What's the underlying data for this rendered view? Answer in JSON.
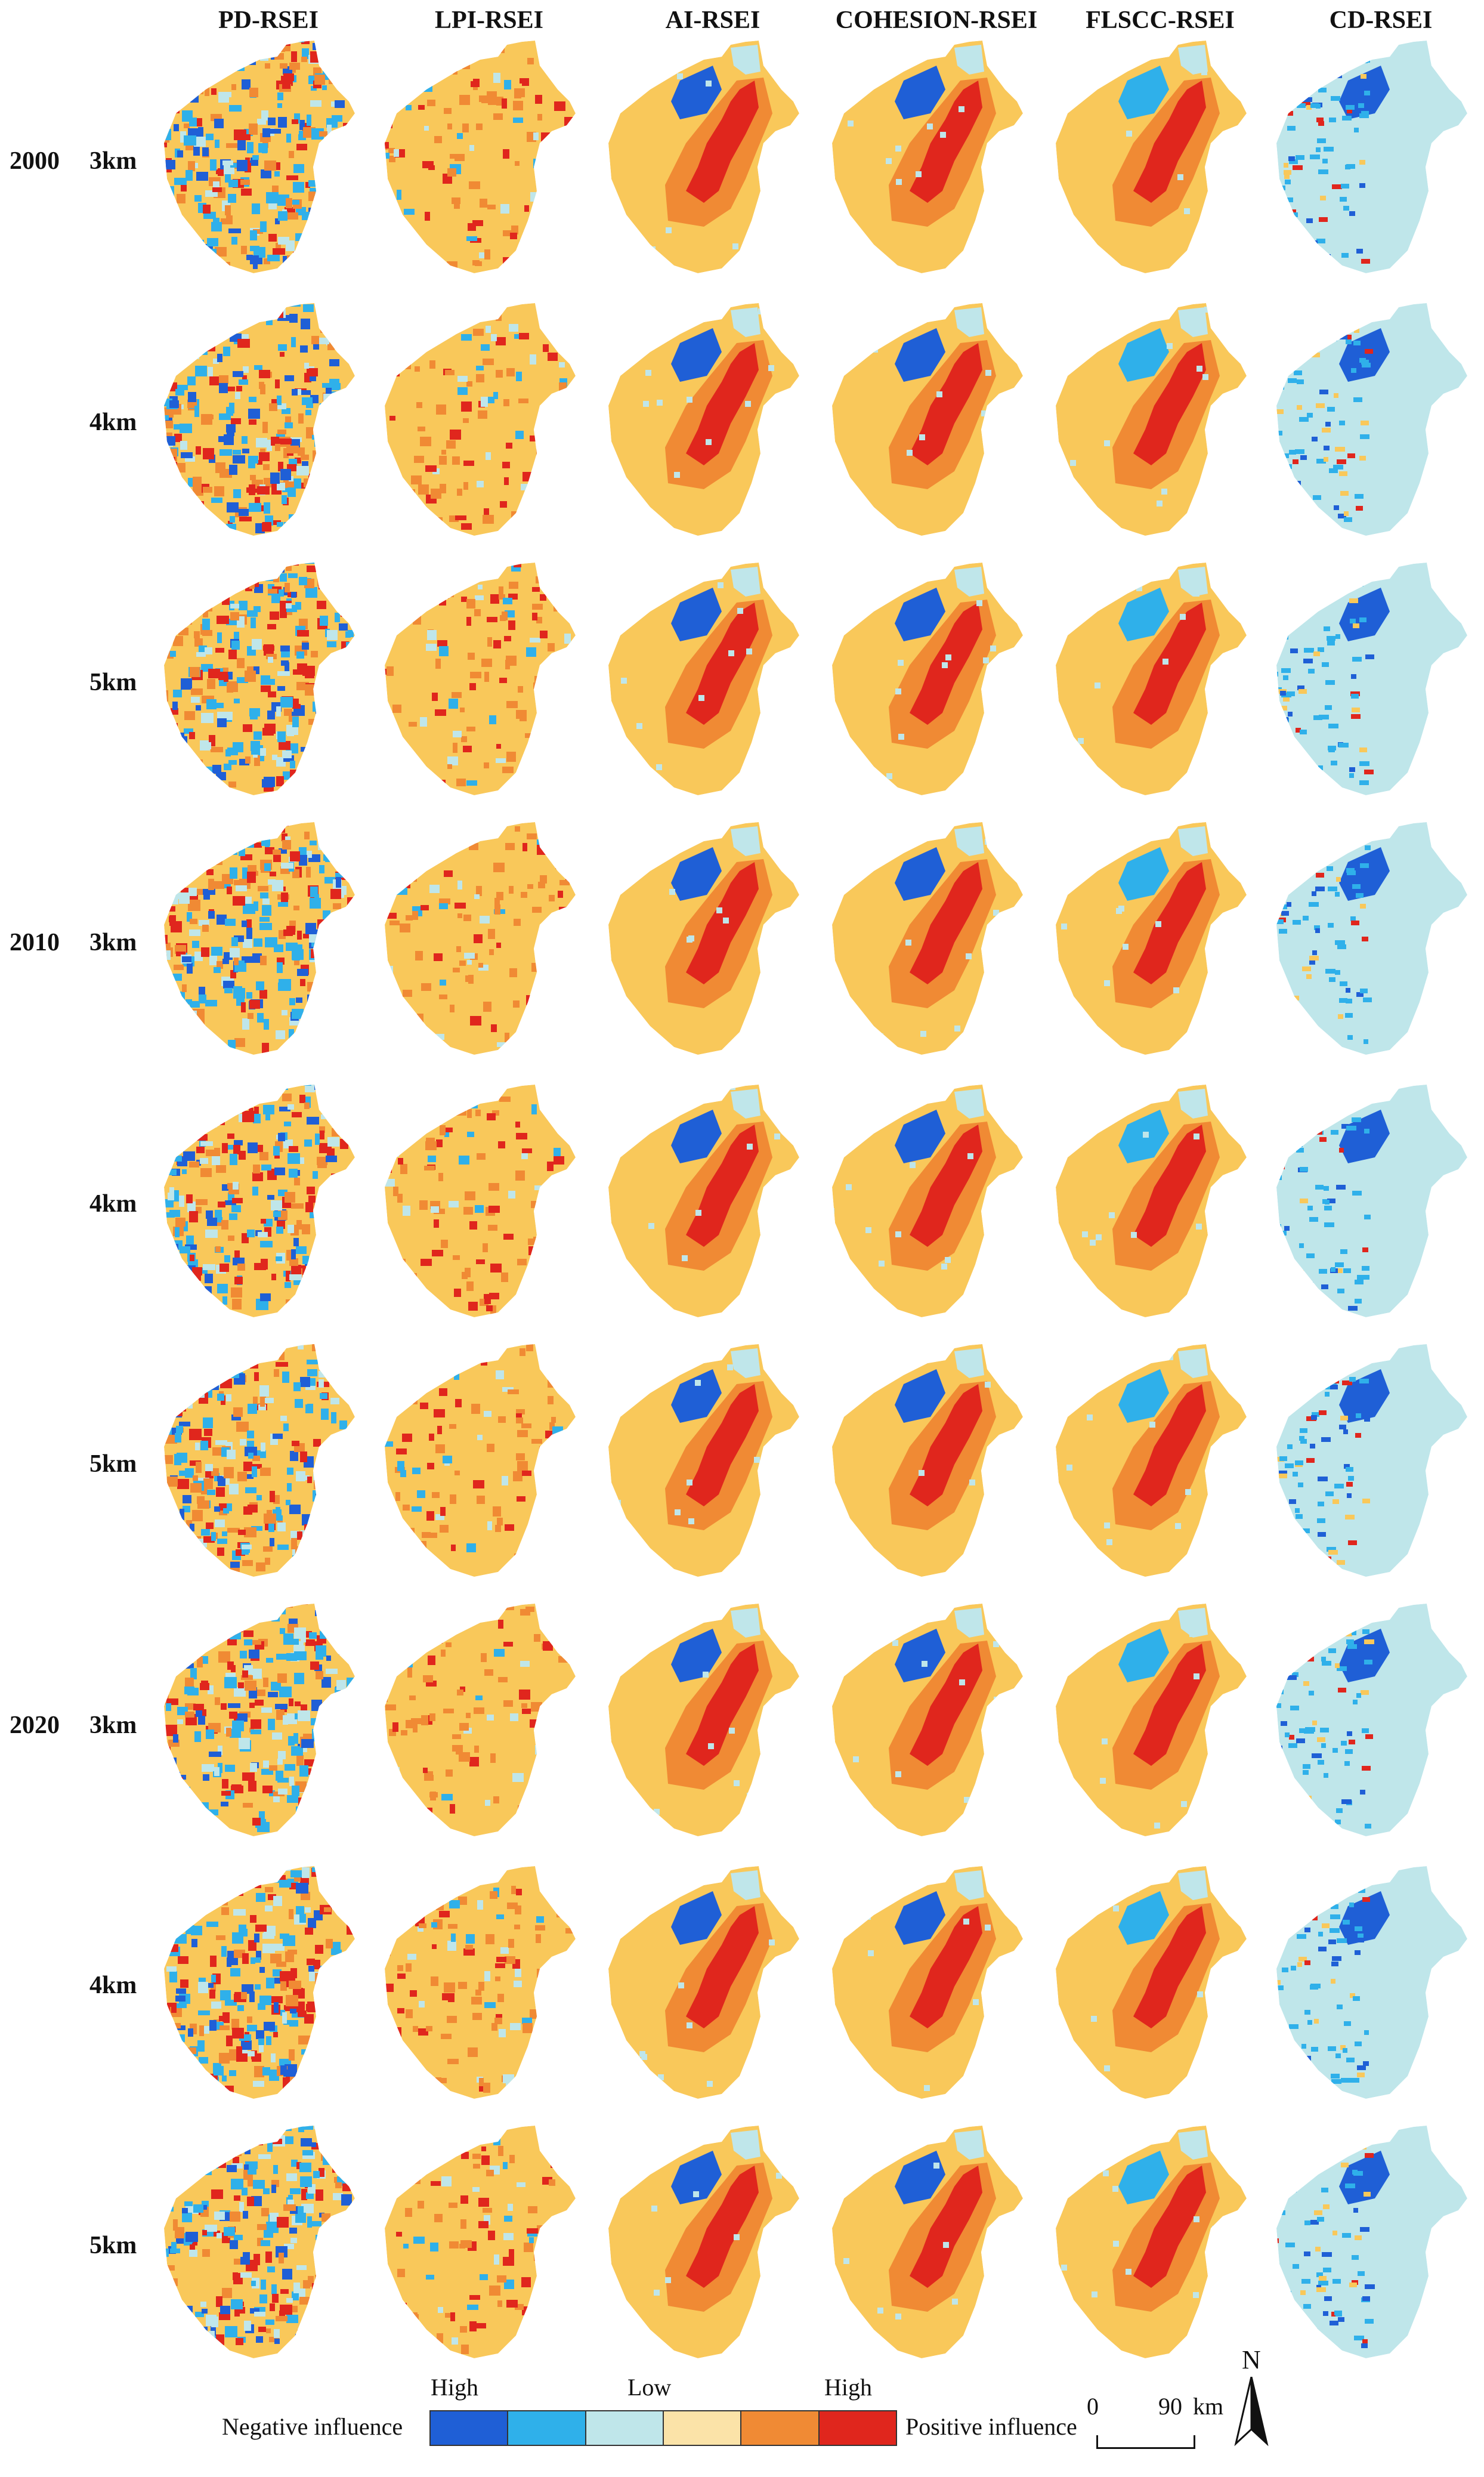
{
  "columns": [
    "PD-RSEI",
    "LPI-RSEI",
    "AI-RSEI",
    "COHESION-RSEI",
    "FLSCC-RSEI",
    "CD-RSEI"
  ],
  "years": [
    "2000",
    "2010",
    "2020"
  ],
  "scales": [
    "3km",
    "4km",
    "5km"
  ],
  "legend": {
    "negative_label": "Negative influence",
    "positive_label": "Positive influence",
    "high_left": "High",
    "low": "Low",
    "high_right": "High",
    "colors": [
      "#1f5fd6",
      "#2fb0ea",
      "#bfe6ea",
      "#fbe3a8",
      "#f08a34",
      "#e0261d"
    ]
  },
  "scalebar": {
    "start": "0",
    "end": "90",
    "unit": "km"
  },
  "north": "N"
}
